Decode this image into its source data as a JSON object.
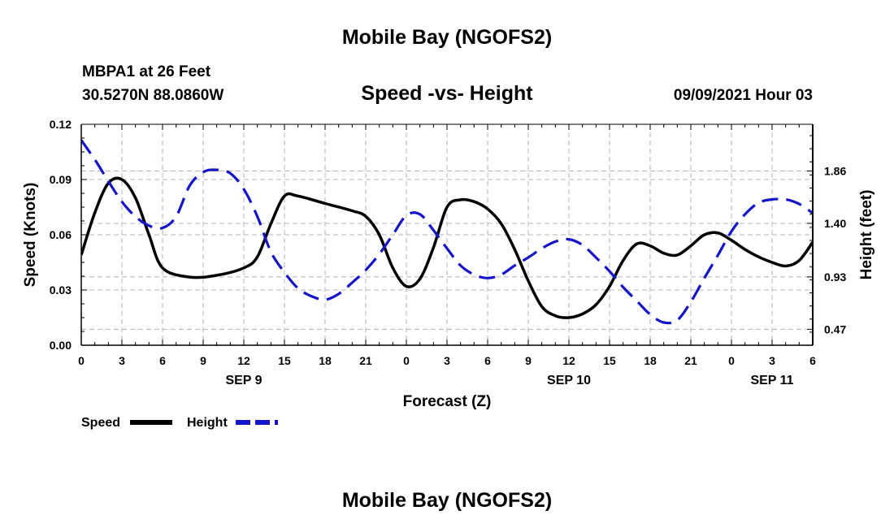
{
  "title": "Mobile Bay (NGOFS2)",
  "footer_title": "Mobile Bay (NGOFS2)",
  "station": "MBPA1 at 26 Feet",
  "coordinates": "30.5270N  88.0860W",
  "subtitle": "Speed -vs- Height",
  "datetime": "09/09/2021 Hour 03",
  "colors": {
    "speed": "#000000",
    "height": "#1515c8",
    "grid": "#b4b4b4"
  },
  "chart_data": {
    "type": "line",
    "xlabel": "Forecast (Z)",
    "ylabel_left": "Speed (Knots)",
    "ylabel_right": "Height (feet)",
    "xlim": [
      0,
      54
    ],
    "ylim_left": [
      0,
      0.12
    ],
    "ylim_right": [
      0.33,
      2.27
    ],
    "grid": true,
    "legend_position": "bottom-left",
    "x_ticks": [
      0,
      3,
      6,
      9,
      12,
      15,
      18,
      21,
      24,
      27,
      30,
      33,
      36,
      39,
      42,
      45,
      48,
      51,
      54
    ],
    "x_tick_labels": [
      "0",
      "3",
      "6",
      "9",
      "12",
      "15",
      "18",
      "21",
      "0",
      "3",
      "6",
      "9",
      "12",
      "15",
      "18",
      "21",
      "0",
      "3",
      "6"
    ],
    "date_labels": [
      {
        "x": 12,
        "label": "SEP 9"
      },
      {
        "x": 36,
        "label": "SEP 10"
      },
      {
        "x": 51,
        "label": "SEP 11"
      }
    ],
    "y_ticks_left": [
      0,
      0.03,
      0.06,
      0.09,
      0.12
    ],
    "y_tick_labels_left": [
      "0.00",
      "0.03",
      "0.06",
      "0.09",
      "0.12"
    ],
    "y_ticks_right": [
      0.47,
      0.93,
      1.4,
      1.86
    ],
    "y_tick_labels_right": [
      "0.47",
      "0.93",
      "1.40",
      "1.86"
    ],
    "series": [
      {
        "name": "Speed",
        "axis": "left",
        "style": "solid",
        "x": [
          0,
          1,
          2,
          3,
          4,
          5,
          6,
          8,
          10,
          12,
          13,
          14,
          15,
          16,
          18,
          20,
          21,
          22,
          23,
          24,
          25,
          26,
          27,
          28,
          29,
          30,
          31,
          32,
          33,
          34,
          35,
          36,
          37,
          38,
          39,
          40,
          41,
          42,
          43,
          44,
          45,
          46,
          47,
          48,
          49,
          50,
          51,
          52,
          53,
          54
        ],
        "values": [
          0.049,
          0.072,
          0.088,
          0.09,
          0.08,
          0.06,
          0.042,
          0.037,
          0.038,
          0.042,
          0.048,
          0.066,
          0.081,
          0.081,
          0.077,
          0.073,
          0.07,
          0.06,
          0.042,
          0.032,
          0.036,
          0.053,
          0.075,
          0.079,
          0.078,
          0.074,
          0.066,
          0.052,
          0.035,
          0.021,
          0.016,
          0.015,
          0.017,
          0.022,
          0.032,
          0.046,
          0.055,
          0.054,
          0.05,
          0.049,
          0.054,
          0.06,
          0.061,
          0.057,
          0.052,
          0.048,
          0.045,
          0.043,
          0.046,
          0.056
        ]
      },
      {
        "name": "Height",
        "axis": "right",
        "style": "dashed",
        "x": [
          0,
          1,
          2,
          3,
          4,
          5,
          6,
          7,
          8,
          9,
          10,
          11,
          12,
          13,
          14,
          15,
          16,
          17,
          18,
          19,
          20,
          21,
          22,
          23,
          24,
          25,
          26,
          27,
          28,
          29,
          30,
          31,
          32,
          33,
          34,
          35,
          36,
          37,
          38,
          39,
          40,
          41,
          42,
          43,
          44,
          45,
          46,
          47,
          48,
          49,
          50,
          51,
          52,
          53,
          54
        ],
        "values": [
          2.13,
          1.96,
          1.77,
          1.59,
          1.46,
          1.38,
          1.36,
          1.46,
          1.73,
          1.85,
          1.87,
          1.84,
          1.7,
          1.46,
          1.15,
          0.97,
          0.83,
          0.76,
          0.73,
          0.78,
          0.88,
          0.99,
          1.13,
          1.3,
          1.47,
          1.48,
          1.34,
          1.18,
          1.03,
          0.95,
          0.92,
          0.95,
          1.03,
          1.1,
          1.18,
          1.24,
          1.26,
          1.21,
          1.1,
          0.98,
          0.84,
          0.72,
          0.6,
          0.53,
          0.55,
          0.71,
          0.92,
          1.12,
          1.33,
          1.48,
          1.58,
          1.61,
          1.61,
          1.57,
          1.49
        ]
      }
    ]
  }
}
